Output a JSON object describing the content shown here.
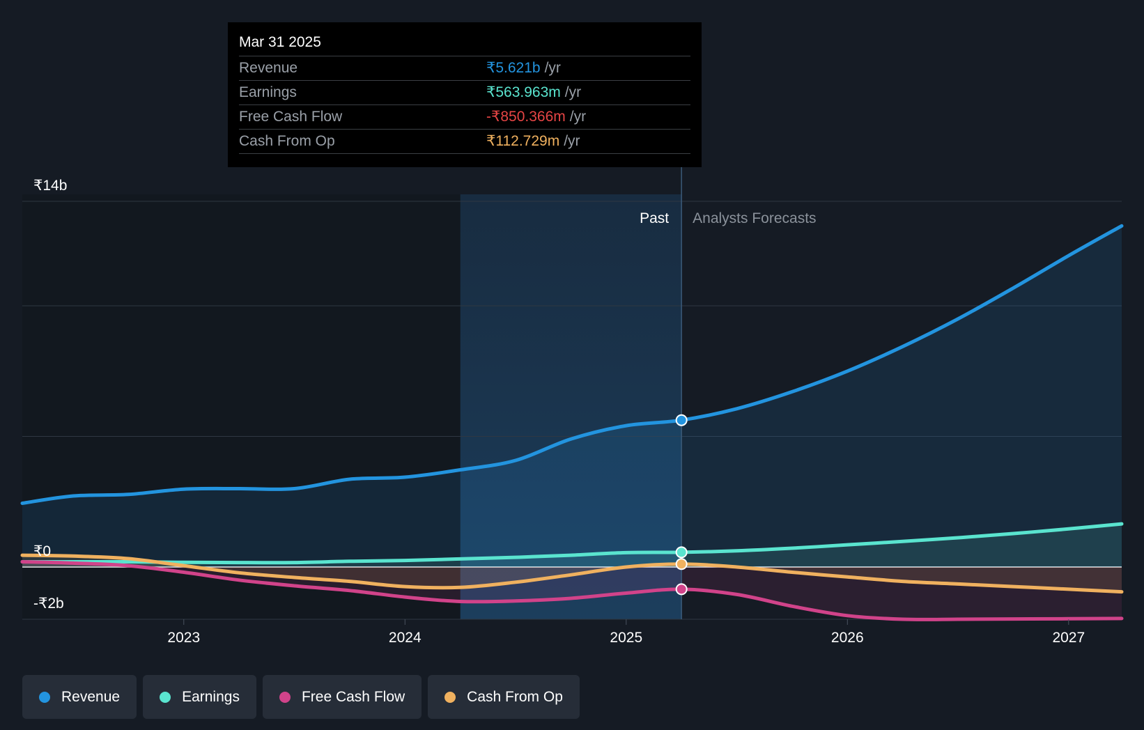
{
  "tooltip": {
    "date": "Mar 31 2025",
    "rows": [
      {
        "label": "Revenue",
        "value": "₹5.621b",
        "unit": "/yr",
        "color": "#2394df"
      },
      {
        "label": "Earnings",
        "value": "₹563.963m",
        "unit": "/yr",
        "color": "#5ae4cf"
      },
      {
        "label": "Free Cash Flow",
        "value": "-₹850.366m",
        "unit": "/yr",
        "color": "#e64545"
      },
      {
        "label": "Cash From Op",
        "value": "₹112.729m",
        "unit": "/yr",
        "color": "#f0b15f"
      }
    ]
  },
  "legend": [
    {
      "label": "Revenue",
      "color": "#2394df"
    },
    {
      "label": "Earnings",
      "color": "#5ae4cf"
    },
    {
      "label": "Free Cash Flow",
      "color": "#d1438a"
    },
    {
      "label": "Cash From Op",
      "color": "#f0b15f"
    }
  ],
  "chart_data": {
    "type": "line",
    "ylim": [
      -2,
      14
    ],
    "y_ticks": [
      {
        "value": 14,
        "label": "₹14b"
      },
      {
        "value": 0,
        "label": "₹0"
      },
      {
        "value": -2,
        "label": "-₹2b"
      }
    ],
    "gridlines": [
      14,
      10,
      5,
      0,
      -2
    ],
    "xlim": [
      2022.27,
      2027.24
    ],
    "x_ticks": [
      {
        "value": 2023.0,
        "label": "2023"
      },
      {
        "value": 2024.0,
        "label": "2024"
      },
      {
        "value": 2025.0,
        "label": "2025"
      },
      {
        "value": 2026.0,
        "label": "2026"
      },
      {
        "value": 2027.0,
        "label": "2027"
      }
    ],
    "past_label": "Past",
    "forecast_label": "Analysts Forecasts",
    "highlight_start": 2024.25,
    "divider_x": 2025.25,
    "series": [
      {
        "name": "Revenue",
        "color": "#2394df",
        "points": [
          [
            2022.27,
            2.44
          ],
          [
            2022.5,
            2.72
          ],
          [
            2022.75,
            2.78
          ],
          [
            2023.0,
            2.98
          ],
          [
            2023.25,
            3.0
          ],
          [
            2023.5,
            3.0
          ],
          [
            2023.75,
            3.36
          ],
          [
            2024.0,
            3.44
          ],
          [
            2024.25,
            3.72
          ],
          [
            2024.5,
            4.08
          ],
          [
            2024.75,
            4.9
          ],
          [
            2025.0,
            5.41
          ],
          [
            2025.25,
            5.621
          ],
          [
            2025.5,
            6.06
          ],
          [
            2025.75,
            6.71
          ],
          [
            2026.0,
            7.5
          ],
          [
            2026.25,
            8.44
          ],
          [
            2026.5,
            9.5
          ],
          [
            2026.75,
            10.68
          ],
          [
            2027.0,
            11.92
          ],
          [
            2027.24,
            13.06
          ]
        ]
      },
      {
        "name": "Earnings",
        "color": "#5ae4cf",
        "points": [
          [
            2022.27,
            0.2
          ],
          [
            2022.5,
            0.2
          ],
          [
            2022.75,
            0.2
          ],
          [
            2023.0,
            0.18
          ],
          [
            2023.25,
            0.17
          ],
          [
            2023.5,
            0.17
          ],
          [
            2023.75,
            0.22
          ],
          [
            2024.0,
            0.25
          ],
          [
            2024.25,
            0.31
          ],
          [
            2024.5,
            0.37
          ],
          [
            2024.75,
            0.45
          ],
          [
            2025.0,
            0.55
          ],
          [
            2025.25,
            0.564
          ],
          [
            2025.5,
            0.62
          ],
          [
            2025.75,
            0.72
          ],
          [
            2026.0,
            0.85
          ],
          [
            2026.25,
            0.98
          ],
          [
            2026.5,
            1.12
          ],
          [
            2026.75,
            1.28
          ],
          [
            2027.0,
            1.46
          ],
          [
            2027.24,
            1.65
          ]
        ]
      },
      {
        "name": "Free Cash Flow",
        "color": "#d1438a",
        "points": [
          [
            2022.27,
            0.2
          ],
          [
            2022.5,
            0.15
          ],
          [
            2022.75,
            0.05
          ],
          [
            2023.0,
            -0.2
          ],
          [
            2023.25,
            -0.5
          ],
          [
            2023.5,
            -0.72
          ],
          [
            2023.75,
            -0.9
          ],
          [
            2024.0,
            -1.15
          ],
          [
            2024.25,
            -1.32
          ],
          [
            2024.5,
            -1.3
          ],
          [
            2024.75,
            -1.2
          ],
          [
            2025.0,
            -1.0
          ],
          [
            2025.25,
            -0.85
          ],
          [
            2025.5,
            -1.05
          ],
          [
            2025.75,
            -1.5
          ],
          [
            2026.0,
            -1.86
          ],
          [
            2026.25,
            -2.0
          ],
          [
            2026.5,
            -2.0
          ],
          [
            2026.75,
            -1.99
          ],
          [
            2027.0,
            -1.98
          ],
          [
            2027.24,
            -1.97
          ]
        ]
      },
      {
        "name": "Cash From Op",
        "color": "#f0b15f",
        "points": [
          [
            2022.27,
            0.45
          ],
          [
            2022.5,
            0.42
          ],
          [
            2022.75,
            0.32
          ],
          [
            2023.0,
            0.05
          ],
          [
            2023.25,
            -0.22
          ],
          [
            2023.5,
            -0.4
          ],
          [
            2023.75,
            -0.55
          ],
          [
            2024.0,
            -0.75
          ],
          [
            2024.25,
            -0.78
          ],
          [
            2024.5,
            -0.58
          ],
          [
            2024.75,
            -0.3
          ],
          [
            2025.0,
            0.0
          ],
          [
            2025.25,
            0.113
          ],
          [
            2025.5,
            0.0
          ],
          [
            2025.75,
            -0.2
          ],
          [
            2026.0,
            -0.38
          ],
          [
            2026.25,
            -0.55
          ],
          [
            2026.5,
            -0.65
          ],
          [
            2026.75,
            -0.75
          ],
          [
            2027.0,
            -0.85
          ],
          [
            2027.24,
            -0.95
          ]
        ]
      }
    ],
    "markers_at": 2025.25
  }
}
